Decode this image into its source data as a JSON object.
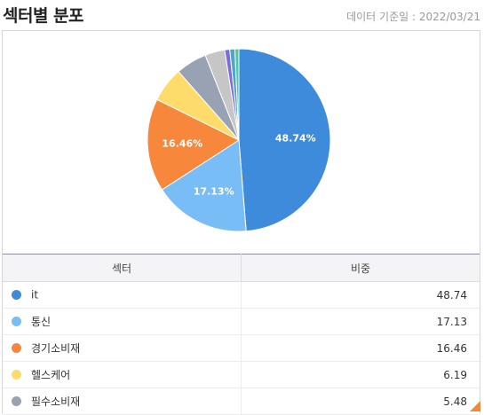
{
  "header": {
    "title": "섹터별 분포",
    "date_label": "데이터 기준일 : 2022/03/21"
  },
  "chart_data": {
    "type": "pie",
    "categories": [
      "it",
      "통신",
      "경기소비재",
      "헬스케어",
      "필수소비재",
      "",
      "",
      "",
      ""
    ],
    "values": [
      48.74,
      17.13,
      16.46,
      6.19,
      5.48,
      3.5,
      0.9,
      0.9,
      0.7
    ],
    "colors": [
      "#3f8bdb",
      "#78bdf5",
      "#f7883b",
      "#fddc6c",
      "#98a2b2",
      "#c6c6c6",
      "#7a6fd8",
      "#4fa6c6",
      "#4bc8a8"
    ],
    "slice_labels": [
      "48.74%",
      "17.13%",
      "16.46%",
      "",
      "",
      "",
      "",
      "",
      ""
    ]
  },
  "table": {
    "headers": {
      "sector": "섹터",
      "weight": "비중"
    },
    "rows": [
      {
        "sector": "it",
        "weight": "48.74",
        "color": "#3f8bdb"
      },
      {
        "sector": "통신",
        "weight": "17.13",
        "color": "#78bdf5"
      },
      {
        "sector": "경기소비재",
        "weight": "16.46",
        "color": "#f7883b"
      },
      {
        "sector": "헬스케어",
        "weight": "6.19",
        "color": "#fddc6c"
      },
      {
        "sector": "필수소비재",
        "weight": "5.48",
        "color": "#98a2b2"
      }
    ]
  }
}
